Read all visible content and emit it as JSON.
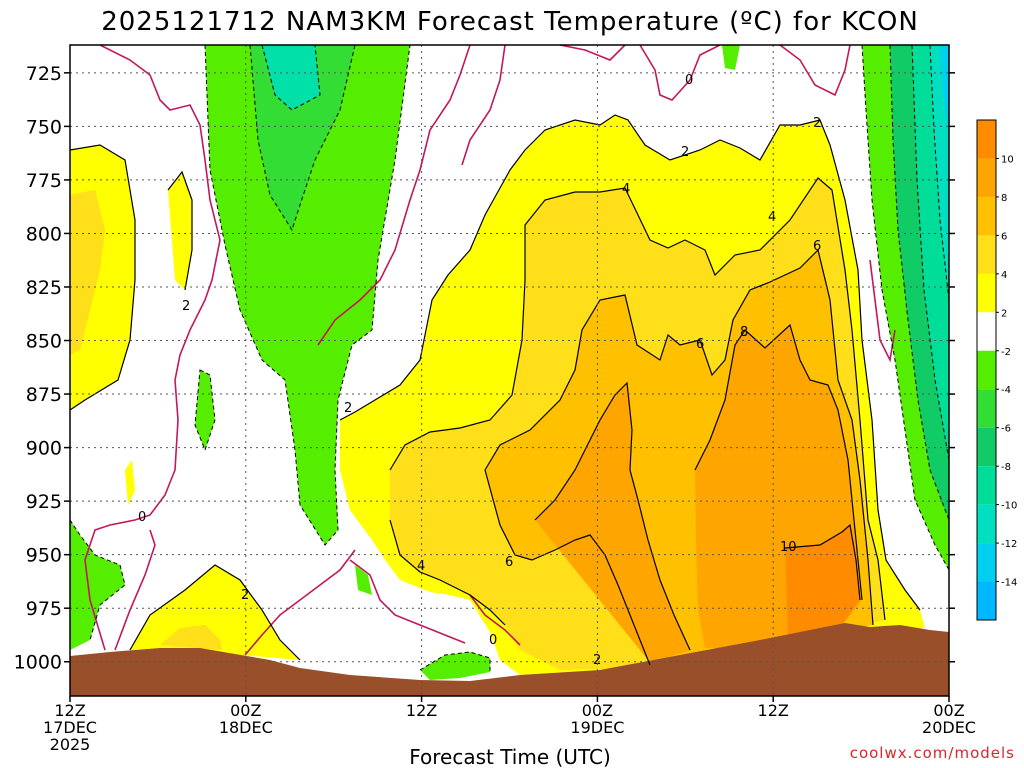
{
  "chart_data": {
    "type": "heatmap",
    "title": "2025121712 NAM3KM Forecast Temperature (ºC) for KCON",
    "xlabel": "Forecast Time (UTC)",
    "ylabel": "",
    "credit": "coolwx.com/models",
    "y_ticks": [
      "725",
      "750",
      "775",
      "800",
      "825",
      "850",
      "875",
      "900",
      "925",
      "950",
      "975",
      "1000"
    ],
    "y_values": [
      725,
      750,
      775,
      800,
      825,
      850,
      875,
      900,
      925,
      950,
      975,
      1000
    ],
    "ylim": [
      1016,
      712
    ],
    "x_ticks": [
      {
        "hour": 0,
        "label": [
          "12Z",
          "17DEC",
          "2025"
        ]
      },
      {
        "hour": 12,
        "label": [
          "00Z",
          "18DEC"
        ]
      },
      {
        "hour": 24,
        "label": [
          "12Z"
        ]
      },
      {
        "hour": 36,
        "label": [
          "00Z",
          "19DEC"
        ]
      },
      {
        "hour": 48,
        "label": [
          "12Z"
        ]
      },
      {
        "hour": 60,
        "label": [
          "00Z",
          "20DEC"
        ]
      }
    ],
    "xlim": [
      0,
      60
    ],
    "colorbar": {
      "labels": [
        "10",
        "8",
        "6",
        "4",
        "2",
        "-2",
        "-4",
        "-6",
        "-8",
        "-10",
        "-12",
        "-14"
      ],
      "colors": [
        "#ff8c00",
        "#ffa500",
        "#ffc000",
        "#ffde1a",
        "#ffff00",
        "#ffffff",
        "#55ee00",
        "#33dd33",
        "#11cc66",
        "#00dd99",
        "#00e0c0",
        "#00d0f0",
        "#00b8ff"
      ]
    },
    "contour_labels": [
      "0",
      "0",
      "0",
      "2",
      "2",
      "2",
      "2",
      "2",
      "2",
      "4",
      "4",
      "4",
      "6",
      "6",
      "6",
      "8",
      "10"
    ]
  }
}
